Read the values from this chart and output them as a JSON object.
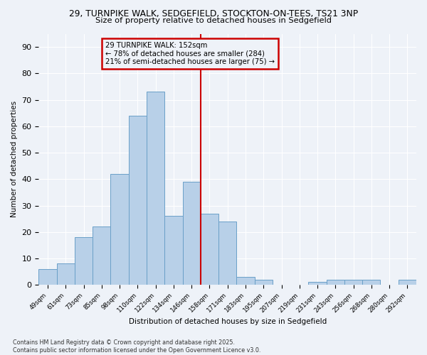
{
  "title_line1": "29, TURNPIKE WALK, SEDGEFIELD, STOCKTON-ON-TEES, TS21 3NP",
  "title_line2": "Size of property relative to detached houses in Sedgefield",
  "xlabel": "Distribution of detached houses by size in Sedgefield",
  "ylabel": "Number of detached properties",
  "categories": [
    "49sqm",
    "61sqm",
    "73sqm",
    "85sqm",
    "98sqm",
    "110sqm",
    "122sqm",
    "134sqm",
    "146sqm",
    "158sqm",
    "171sqm",
    "183sqm",
    "195sqm",
    "207sqm",
    "219sqm",
    "231sqm",
    "243sqm",
    "256sqm",
    "268sqm",
    "280sqm",
    "292sqm"
  ],
  "values": [
    6,
    8,
    18,
    22,
    42,
    64,
    73,
    26,
    39,
    27,
    24,
    3,
    2,
    0,
    0,
    1,
    2,
    2,
    2,
    0,
    2
  ],
  "bar_color": "#b8d0e8",
  "bar_edge_color": "#6aa0c8",
  "vline_x_idx": 8,
  "vline_color": "#cc0000",
  "annotation_text": "29 TURNPIKE WALK: 152sqm\n← 78% of detached houses are smaller (284)\n21% of semi-detached houses are larger (75) →",
  "annotation_box_color": "#cc0000",
  "ylim": [
    0,
    95
  ],
  "yticks": [
    0,
    10,
    20,
    30,
    40,
    50,
    60,
    70,
    80,
    90
  ],
  "background_color": "#eef2f8",
  "footer_text": "Contains HM Land Registry data © Crown copyright and database right 2025.\nContains public sector information licensed under the Open Government Licence v3.0.",
  "grid_color": "#ffffff"
}
